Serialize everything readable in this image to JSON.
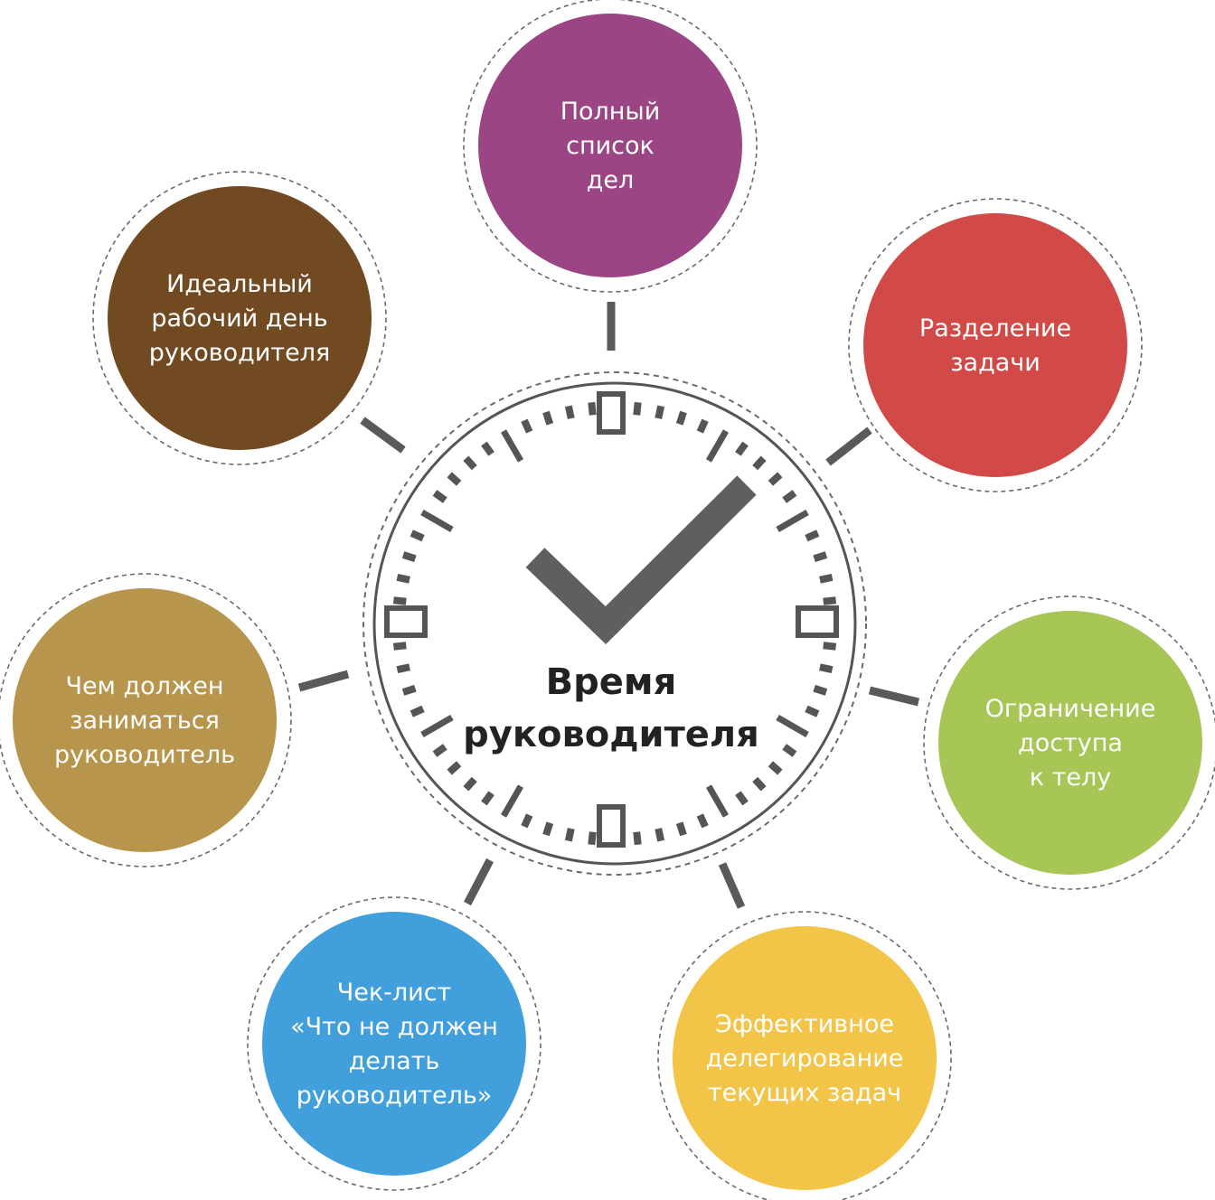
{
  "center": {
    "title_lines": [
      "Время",
      "руководителя"
    ],
    "dial_color": "#555555",
    "check_color": "#5f5f5f"
  },
  "connector_color": "#5a5a5a",
  "nodes": [
    {
      "id": "full-task-list",
      "color": "#9b4584",
      "lines": [
        "Полный",
        "список",
        "дел"
      ]
    },
    {
      "id": "task-separation",
      "color": "#d24a48",
      "lines": [
        "Разделение",
        "задачи"
      ]
    },
    {
      "id": "access-restriction",
      "color": "#a8c656",
      "lines": [
        "Ограничение",
        "доступа",
        "к телу"
      ]
    },
    {
      "id": "effective-delegation",
      "color": "#f2c548",
      "lines": [
        "Эффективное",
        "делегирование",
        "текущих задач"
      ]
    },
    {
      "id": "checklist",
      "color": "#41a0dc",
      "lines": [
        "Чек-лист",
        "«Что не должен",
        "делать",
        "руководитель»"
      ]
    },
    {
      "id": "manager-duties",
      "color": "#b8954c",
      "lines": [
        "Чем должен",
        "заниматься",
        "руководитель"
      ]
    },
    {
      "id": "ideal-workday",
      "color": "#724a21",
      "lines": [
        "Идеальный",
        "рабочий день",
        "руководителя"
      ]
    }
  ]
}
